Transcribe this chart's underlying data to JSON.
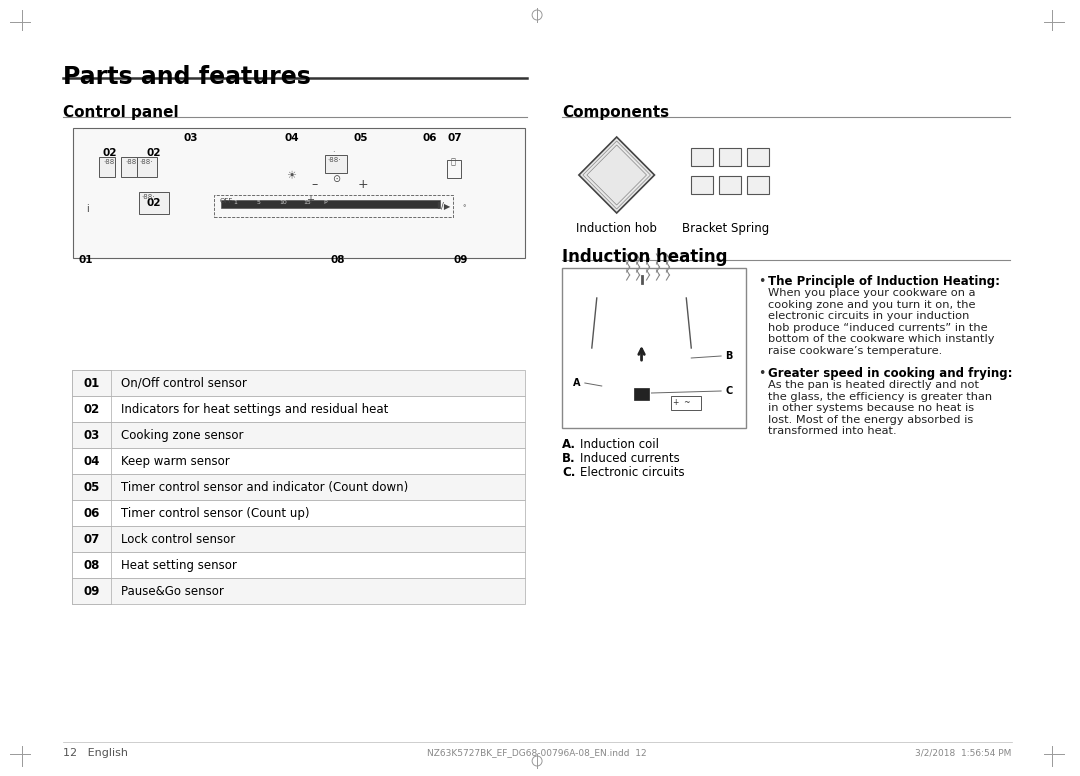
{
  "page_title": "Parts and features",
  "bg_color": "#ffffff",
  "text_color": "#000000",
  "left_section_title": "Control panel",
  "right_section_title1": "Components",
  "right_section_title2": "Induction heating",
  "table_rows": [
    [
      "01",
      "On/Off control sensor"
    ],
    [
      "02",
      "Indicators for heat settings and residual heat"
    ],
    [
      "03",
      "Cooking zone sensor"
    ],
    [
      "04",
      "Keep warm sensor"
    ],
    [
      "05",
      "Timer control sensor and indicator (Count down)"
    ],
    [
      "06",
      "Timer control sensor (Count up)"
    ],
    [
      "07",
      "Lock control sensor"
    ],
    [
      "08",
      "Heat setting sensor"
    ],
    [
      "09",
      "Pause&Go sensor"
    ]
  ],
  "components_labels": [
    "Induction hob",
    "Bracket Spring"
  ],
  "induction_labels": [
    [
      "A.",
      "Induction coil"
    ],
    [
      "B.",
      "Induced currents"
    ],
    [
      "C.",
      "Electronic circuits"
    ]
  ],
  "bullet1_title": "The Principle of Induction Heating",
  "bullet1_text": "When you place your cookware on a\ncooking zone and you turn it on, the\nelectronic circuits in your induction\nhob produce “induced currents” in the\nbottom of the cookware which instantly\nraise cookware’s temperature.",
  "bullet2_title": "Greater speed in cooking and frying",
  "bullet2_text": "As the pan is heated directly and not\nthe glass, the efficiency is greater than\nin other systems because no heat is\nlost. Most of the energy absorbed is\ntransformed into heat.",
  "footer_left": "12   English",
  "footer_center": "NZ63K5727BK_EF_DG68-00796A-08_EN.indd  12",
  "footer_right": "3/2/2018  1:56:54 PM",
  "panel_border_color": "#555555",
  "table_border_color": "#aaaaaa",
  "section_line_color": "#555555"
}
